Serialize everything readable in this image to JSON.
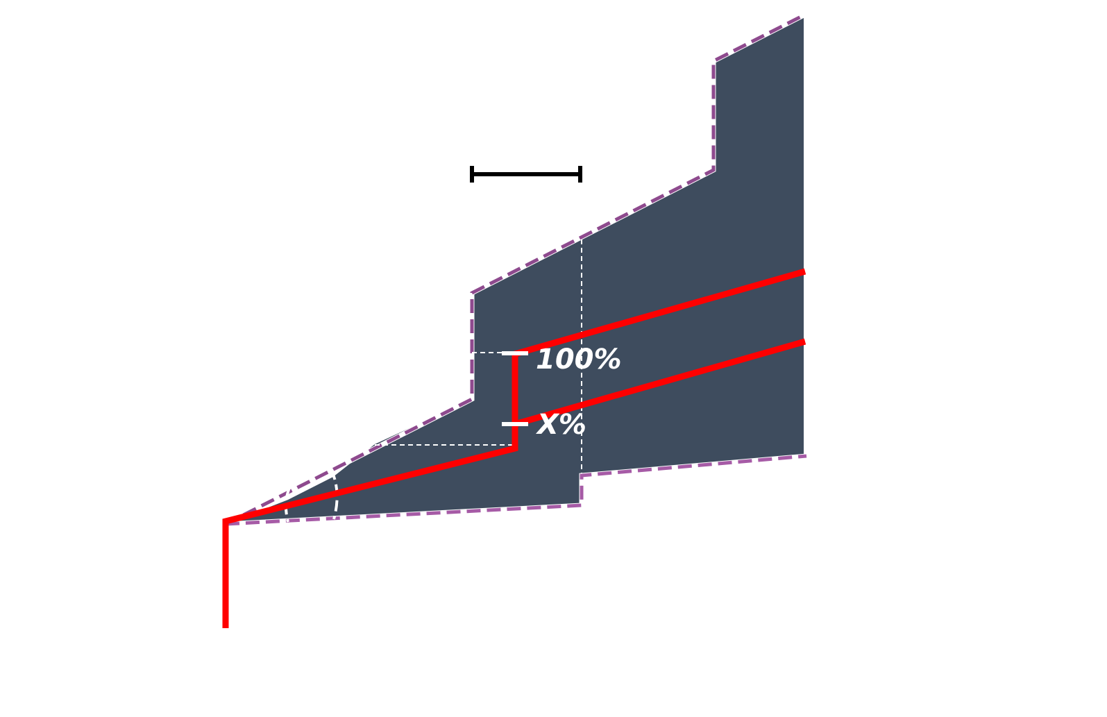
{
  "labels": {
    "top_percent": "100%",
    "bottom_percent": "X%"
  },
  "colors": {
    "region_fill": "#3e4c5e",
    "boundary_dash": "#8e4a8e",
    "boundary_dash_light": "#a65ba6",
    "boundary_gap": "#ffffff",
    "path_line": "#ff0000",
    "guide_line": "#ffffff",
    "scale_bar": "#000000"
  }
}
